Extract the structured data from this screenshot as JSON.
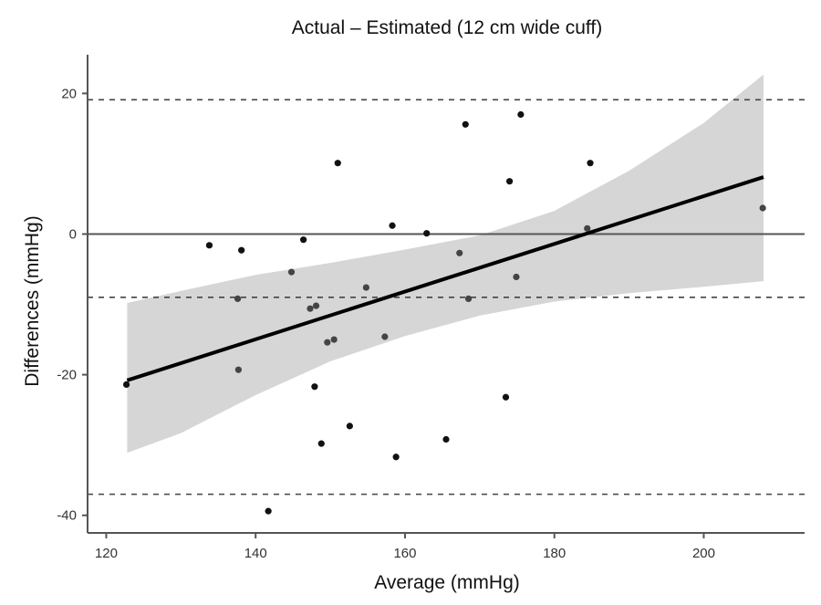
{
  "chart_data": {
    "type": "scatter",
    "title": "Actual – Estimated (12 cm wide cuff)",
    "xlabel": "Average (mmHg)",
    "ylabel": "Differences (mmHg)",
    "xlim": [
      117.5,
      213.5
    ],
    "ylim": [
      -42.5,
      25.5
    ],
    "x_ticks": [
      120,
      140,
      160,
      180,
      200
    ],
    "x_tick_labels": [
      "120",
      "140",
      "160",
      "180",
      "200"
    ],
    "y_ticks": [
      20,
      0,
      -20,
      -40
    ],
    "y_tick_labels": [
      "20",
      "0",
      "-20",
      "-40"
    ],
    "grid": false,
    "legend": "none",
    "reference_lines": {
      "zero": 0,
      "upper_limit_of_agreement": 19.1,
      "mean_difference": -9.0,
      "lower_limit_of_agreement": -37.0
    },
    "points": [
      {
        "x": 122.7,
        "y": -21.4
      },
      {
        "x": 133.8,
        "y": -1.6
      },
      {
        "x": 138.1,
        "y": -2.3
      },
      {
        "x": 137.6,
        "y": -9.2
      },
      {
        "x": 137.7,
        "y": -19.3
      },
      {
        "x": 141.7,
        "y": -39.4
      },
      {
        "x": 144.8,
        "y": -5.4
      },
      {
        "x": 146.4,
        "y": -0.8
      },
      {
        "x": 147.3,
        "y": -10.6
      },
      {
        "x": 148.1,
        "y": -10.2
      },
      {
        "x": 147.9,
        "y": -21.7
      },
      {
        "x": 148.8,
        "y": -29.8
      },
      {
        "x": 149.6,
        "y": -15.4
      },
      {
        "x": 150.5,
        "y": -15.0
      },
      {
        "x": 151.0,
        "y": 10.1
      },
      {
        "x": 152.6,
        "y": -27.3
      },
      {
        "x": 154.8,
        "y": -7.6
      },
      {
        "x": 157.3,
        "y": -14.6
      },
      {
        "x": 158.3,
        "y": 1.2
      },
      {
        "x": 158.8,
        "y": -31.7
      },
      {
        "x": 162.9,
        "y": 0.1
      },
      {
        "x": 165.5,
        "y": -29.2
      },
      {
        "x": 167.3,
        "y": -2.7
      },
      {
        "x": 168.1,
        "y": 15.6
      },
      {
        "x": 168.5,
        "y": -9.2
      },
      {
        "x": 173.5,
        "y": -23.2
      },
      {
        "x": 174.0,
        "y": 7.5
      },
      {
        "x": 174.9,
        "y": -6.1
      },
      {
        "x": 175.5,
        "y": 17.0
      },
      {
        "x": 184.4,
        "y": 0.8
      },
      {
        "x": 184.8,
        "y": 10.1
      },
      {
        "x": 207.9,
        "y": 3.7
      }
    ],
    "regression": {
      "x": [
        122.8,
        208.0
      ],
      "y": [
        -20.8,
        8.1
      ]
    },
    "confidence_band": {
      "x": [
        122.8,
        130,
        140,
        150,
        160,
        170,
        180,
        190,
        200,
        208.0
      ],
      "upper": [
        -9.8,
        -8.1,
        -5.8,
        -4.1,
        -2.2,
        -0.2,
        3.3,
        9.0,
        15.8,
        22.7
      ],
      "lower": [
        -31.1,
        -28.3,
        -22.9,
        -18.1,
        -14.5,
        -11.6,
        -9.6,
        -8.4,
        -7.5,
        -6.7
      ]
    },
    "colors": {
      "points": "#111111",
      "points_in_band": "#444444",
      "regression": "#000000",
      "band": "#d6d6d6",
      "axis": "#555555",
      "reference_line": "#444444"
    }
  }
}
